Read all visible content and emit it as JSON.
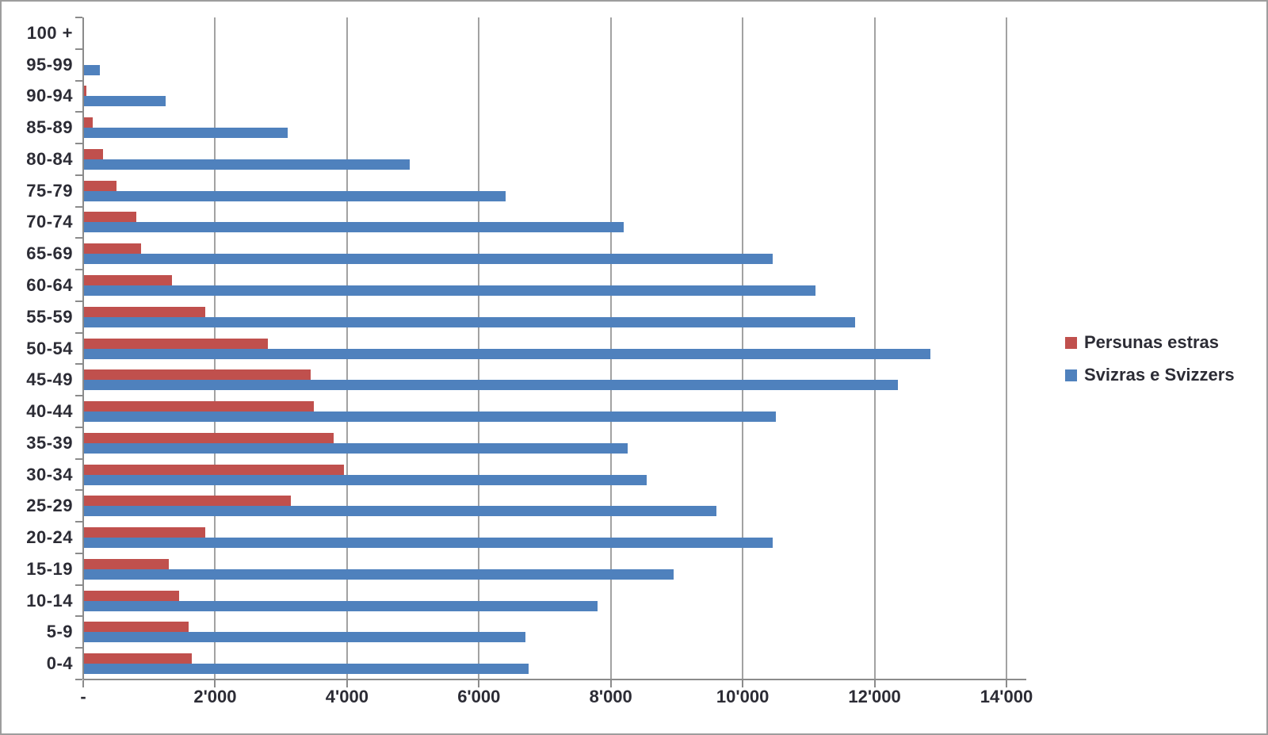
{
  "frame": {
    "background": "#ffffff",
    "border_color": "#9d9d9d"
  },
  "chart_data": {
    "type": "bar",
    "orientation": "horizontal",
    "title": "",
    "xlabel": "",
    "ylabel": "",
    "categories_order": "top-to-bottom",
    "categories": [
      "100 +",
      "95-99",
      "90-94",
      "85-89",
      "80-84",
      "75-79",
      "70-74",
      "65-69",
      "60-64",
      "55-59",
      "50-54",
      "45-49",
      "40-44",
      "35-39",
      "30-34",
      "25-29",
      "20-24",
      "15-19",
      "10-14",
      "5-9",
      "0-4"
    ],
    "series": [
      {
        "name": "Persunas estras",
        "color": "#c0504d",
        "values": [
          0,
          0,
          50,
          150,
          300,
          500,
          800,
          880,
          1350,
          1850,
          2800,
          3450,
          3500,
          3800,
          3950,
          3150,
          1850,
          1300,
          1450,
          1600,
          1650
        ]
      },
      {
        "name": "Svizras e Svizzers",
        "color": "#4f81bd",
        "values": [
          0,
          250,
          1250,
          3100,
          4950,
          6400,
          8200,
          10450,
          11100,
          11700,
          12850,
          12350,
          10500,
          8250,
          8550,
          9600,
          10450,
          8950,
          7800,
          6700,
          6750
        ]
      }
    ],
    "x_axis": {
      "min": 0,
      "max": 14000,
      "tick_interval": 2000,
      "tick_labels": [
        "-",
        "2'000",
        "4'000",
        "6'000",
        "8'000",
        "10'000",
        "12'000",
        "14'000"
      ]
    },
    "grid": true,
    "gridline_color": "#a2a2a2",
    "axis_color": "#8b8b8b",
    "text_color": "#2c2c35",
    "legend": {
      "position": "right",
      "entries": [
        "Persunas estras",
        "Svizras e Svizzers"
      ]
    }
  }
}
